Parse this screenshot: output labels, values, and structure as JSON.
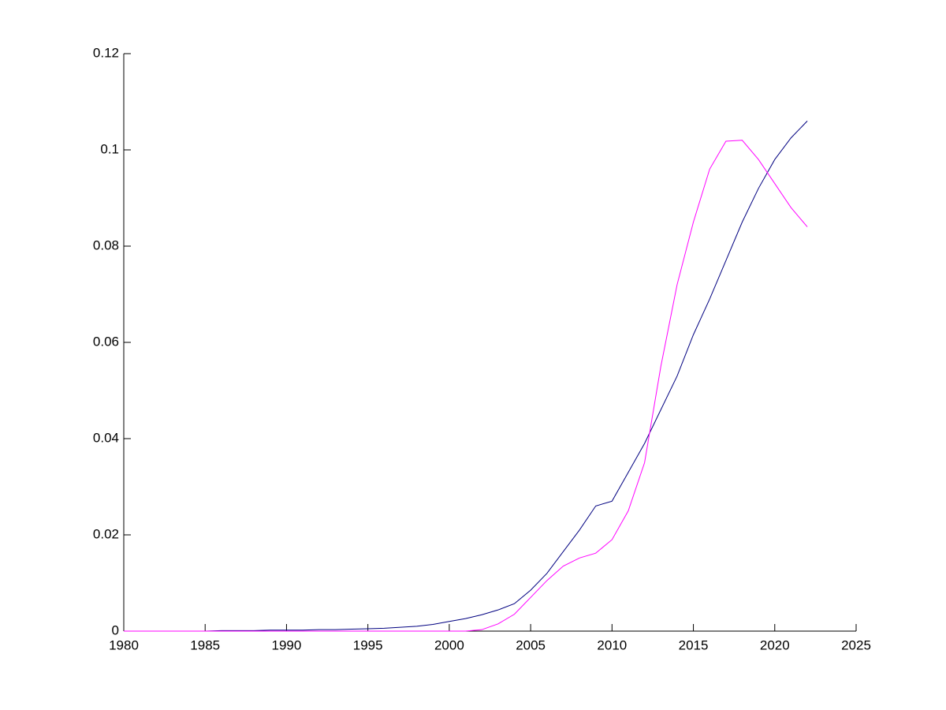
{
  "chart_data": {
    "type": "line",
    "x": [
      1980,
      1981,
      1982,
      1983,
      1984,
      1985,
      1986,
      1987,
      1988,
      1989,
      1990,
      1991,
      1992,
      1993,
      1994,
      1995,
      1996,
      1997,
      1998,
      1999,
      2000,
      2001,
      2002,
      2003,
      2004,
      2005,
      2006,
      2007,
      2008,
      2009,
      2010,
      2011,
      2012,
      2013,
      2014,
      2015,
      2016,
      2017,
      2018,
      2019,
      2020,
      2021,
      2022
    ],
    "series": [
      {
        "color": "#000080",
        "values": [
          0,
          0,
          0,
          0,
          0,
          0,
          0.0001,
          0.0001,
          0.0001,
          0.0002,
          0.0002,
          0.0002,
          0.0003,
          0.0003,
          0.0004,
          0.0005,
          0.0006,
          0.0008,
          0.001,
          0.0014,
          0.002,
          0.0026,
          0.0034,
          0.0044,
          0.0057,
          0.0085,
          0.012,
          0.0165,
          0.021,
          0.026,
          0.027,
          0.033,
          0.039,
          0.046,
          0.053,
          0.0616,
          0.069,
          0.077,
          0.085,
          0.092,
          0.098,
          0.1025,
          0.106
        ]
      },
      {
        "color": "#ff00ff",
        "values": [
          0,
          0,
          0,
          0,
          0,
          0,
          0,
          0,
          0,
          0,
          0,
          0,
          0,
          0,
          0,
          0,
          0,
          0,
          0,
          0,
          0,
          0,
          0.0003,
          0.0015,
          0.0035,
          0.007,
          0.0105,
          0.0135,
          0.0152,
          0.0162,
          0.019,
          0.025,
          0.035,
          0.055,
          0.072,
          0.085,
          0.096,
          0.1018,
          0.102,
          0.098,
          0.093,
          0.088,
          0.084
        ]
      }
    ],
    "xlim": [
      1980,
      2025
    ],
    "xticks": [
      1980,
      1985,
      1990,
      1995,
      2000,
      2005,
      2010,
      2015,
      2020,
      2025
    ],
    "ylim": [
      0,
      0.12
    ],
    "yticks": [
      0,
      0.02,
      0.04,
      0.06,
      0.08,
      0.1,
      0.12
    ]
  }
}
